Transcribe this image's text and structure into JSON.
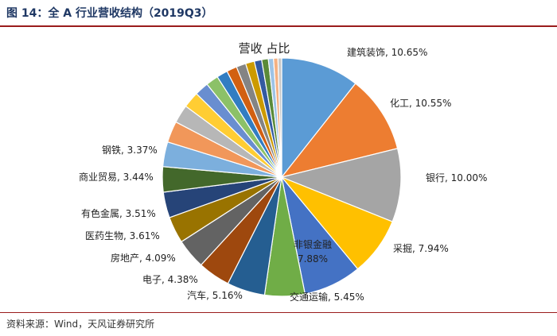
{
  "figure": {
    "title": "图 14：全 A 行业营收结构（2019Q3）",
    "source": "资料来源：Wind，天风证券研究所"
  },
  "chart_data": {
    "type": "pie",
    "title": "营收 占比",
    "slices": [
      {
        "name": "建筑装饰",
        "value": 10.65,
        "color": "#5b9bd5",
        "label": "建筑装饰, 10.65%"
      },
      {
        "name": "化工",
        "value": 10.55,
        "color": "#ed7d31",
        "label": "化工, 10.55%"
      },
      {
        "name": "银行",
        "value": 10.0,
        "color": "#a5a5a5",
        "label": "银行, 10.00%"
      },
      {
        "name": "采掘",
        "value": 7.94,
        "color": "#ffc000",
        "label": "采掘, 7.94%"
      },
      {
        "name": "非银金融",
        "value": 7.88,
        "color": "#4472c4",
        "label": "非银金融\n7.88%"
      },
      {
        "name": "交通运输",
        "value": 5.45,
        "color": "#70ad47",
        "label": "交通运输, 5.45%"
      },
      {
        "name": "汽车",
        "value": 5.16,
        "color": "#255e91",
        "label": "汽车, 5.16%"
      },
      {
        "name": "电子",
        "value": 4.38,
        "color": "#9e480e",
        "label": "电子, 4.38%"
      },
      {
        "name": "房地产",
        "value": 4.09,
        "color": "#636363",
        "label": "房地产, 4.09%"
      },
      {
        "name": "医药生物",
        "value": 3.61,
        "color": "#997300",
        "label": "医药生物, 3.61%"
      },
      {
        "name": "有色金属",
        "value": 3.51,
        "color": "#264478",
        "label": "有色金属, 3.51%"
      },
      {
        "name": "商业贸易",
        "value": 3.44,
        "color": "#43682b",
        "label": "商业贸易, 3.44%"
      },
      {
        "name": "钢铁",
        "value": 3.37,
        "color": "#7cafdd",
        "label": "钢铁, 3.37%"
      },
      {
        "name": "",
        "value": 2.9,
        "color": "#f1975a",
        "label": ""
      },
      {
        "name": "",
        "value": 2.5,
        "color": "#b7b7b7",
        "label": ""
      },
      {
        "name": "",
        "value": 2.2,
        "color": "#ffcd33",
        "label": ""
      },
      {
        "name": "",
        "value": 1.9,
        "color": "#698ed0",
        "label": ""
      },
      {
        "name": "",
        "value": 1.7,
        "color": "#8cc168",
        "label": ""
      },
      {
        "name": "",
        "value": 1.5,
        "color": "#327dc2",
        "label": ""
      },
      {
        "name": "",
        "value": 1.4,
        "color": "#d26012",
        "label": ""
      },
      {
        "name": "",
        "value": 1.3,
        "color": "#848484",
        "label": ""
      },
      {
        "name": "",
        "value": 1.2,
        "color": "#cc9a00",
        "label": ""
      },
      {
        "name": "",
        "value": 1.0,
        "color": "#335aa1",
        "label": ""
      },
      {
        "name": "",
        "value": 0.9,
        "color": "#5a8a39",
        "label": ""
      },
      {
        "name": "",
        "value": 0.7,
        "color": "#9dc3e6",
        "label": ""
      },
      {
        "name": "",
        "value": 0.6,
        "color": "#f4b183",
        "label": ""
      },
      {
        "name": "",
        "value": 0.5,
        "color": "#c9c9c9",
        "label": ""
      }
    ]
  }
}
